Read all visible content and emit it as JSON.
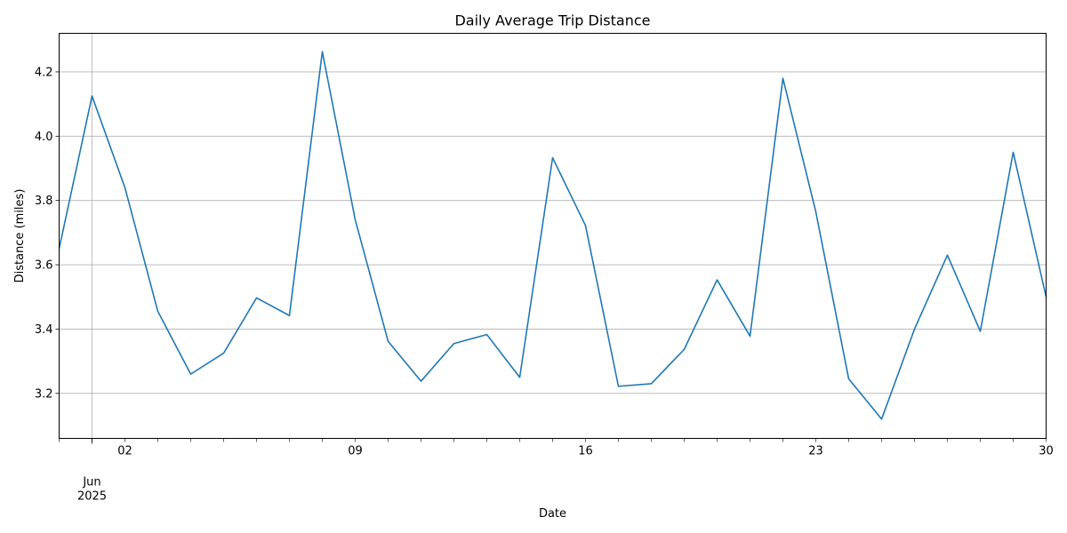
{
  "chart_data": {
    "type": "line",
    "title": "Daily Average Trip Distance",
    "xlabel": "Date",
    "ylabel": "Distance (miles)",
    "grid": true,
    "color": "#1f77b4",
    "x_month_label": "Jun",
    "x_year_label": "2025",
    "x_ticks_labeled": [
      {
        "x": "2025-06-02",
        "label": "02"
      },
      {
        "x": "2025-06-09",
        "label": "09"
      },
      {
        "x": "2025-06-16",
        "label": "16"
      },
      {
        "x": "2025-06-23",
        "label": "23"
      },
      {
        "x": "2025-06-30",
        "label": "30"
      }
    ],
    "x_major_grid": [
      "2025-06-01"
    ],
    "xlim": [
      "2025-05-31",
      "2025-06-30"
    ],
    "ylim": [
      3.06,
      4.32
    ],
    "y_ticks": [
      3.2,
      3.4,
      3.6,
      3.8,
      4.0,
      4.2
    ],
    "y_tick_labels": [
      "3.2",
      "3.4",
      "3.6",
      "3.8",
      "4.0",
      "4.2"
    ],
    "series": [
      {
        "x": [
          "2025-05-31",
          "2025-06-01",
          "2025-06-02",
          "2025-06-03",
          "2025-06-04",
          "2025-06-05",
          "2025-06-06",
          "2025-06-07",
          "2025-06-08",
          "2025-06-09",
          "2025-06-10",
          "2025-06-11",
          "2025-06-12",
          "2025-06-13",
          "2025-06-14",
          "2025-06-15",
          "2025-06-16",
          "2025-06-17",
          "2025-06-18",
          "2025-06-19",
          "2025-06-20",
          "2025-06-21",
          "2025-06-22",
          "2025-06-23",
          "2025-06-24",
          "2025-06-25",
          "2025-06-26",
          "2025-06-27",
          "2025-06-28",
          "2025-06-29",
          "2025-06-30"
        ],
        "values": [
          3.65,
          4.125,
          3.84,
          3.455,
          3.26,
          3.325,
          3.497,
          3.442,
          4.263,
          3.74,
          3.362,
          3.238,
          3.355,
          3.383,
          3.25,
          3.933,
          3.722,
          3.222,
          3.23,
          3.337,
          3.553,
          3.378,
          4.18,
          3.765,
          3.245,
          3.12,
          3.4,
          3.63,
          3.393,
          3.95,
          3.5
        ]
      }
    ]
  }
}
